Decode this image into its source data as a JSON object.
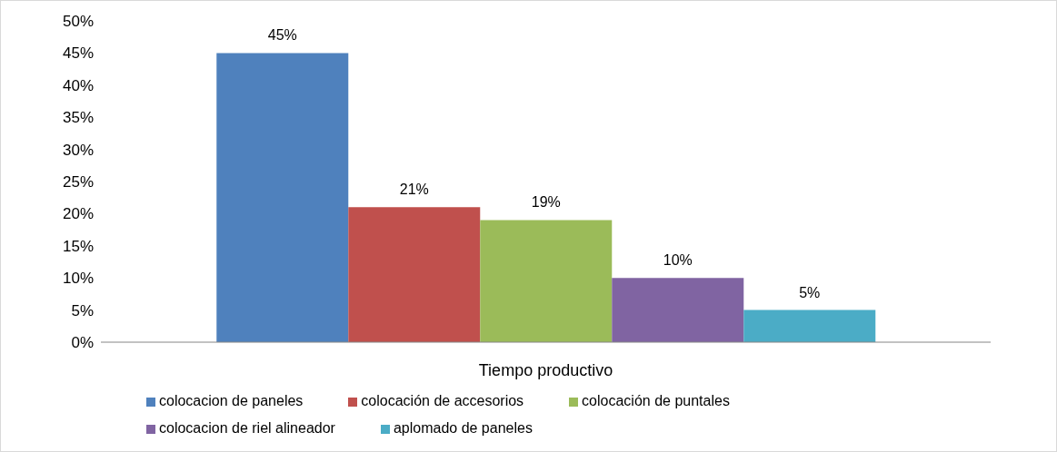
{
  "chart_data": {
    "type": "bar",
    "categories": [
      "Tiempo productivo"
    ],
    "series": [
      {
        "name": "colocacion de paneles",
        "color": "#4f81bd",
        "values": [
          45
        ],
        "value_labels": [
          "45%"
        ]
      },
      {
        "name": "colocación de accesorios",
        "color": "#c0504d",
        "values": [
          21
        ],
        "value_labels": [
          "21%"
        ]
      },
      {
        "name": "colocación de puntales",
        "color": "#9bbb59",
        "values": [
          19
        ],
        "value_labels": [
          "19%"
        ]
      },
      {
        "name": "colocacion de riel alineador",
        "color": "#8064a2",
        "values": [
          10
        ],
        "value_labels": [
          "10%"
        ]
      },
      {
        "name": "aplomado de paneles",
        "color": "#4bacc6",
        "values": [
          5
        ],
        "value_labels": [
          "5%"
        ]
      }
    ],
    "ylim": [
      0,
      50
    ],
    "yticks": [
      {
        "value": 0,
        "label": "0%"
      },
      {
        "value": 5,
        "label": "5%"
      },
      {
        "value": 10,
        "label": "10%"
      },
      {
        "value": 15,
        "label": "15%"
      },
      {
        "value": 20,
        "label": "20%"
      },
      {
        "value": 25,
        "label": "25%"
      },
      {
        "value": 30,
        "label": "30%"
      },
      {
        "value": 35,
        "label": "35%"
      },
      {
        "value": 40,
        "label": "40%"
      },
      {
        "value": 45,
        "label": "45%"
      },
      {
        "value": 50,
        "label": "50%"
      }
    ],
    "grid": false,
    "legend": "bottom"
  }
}
